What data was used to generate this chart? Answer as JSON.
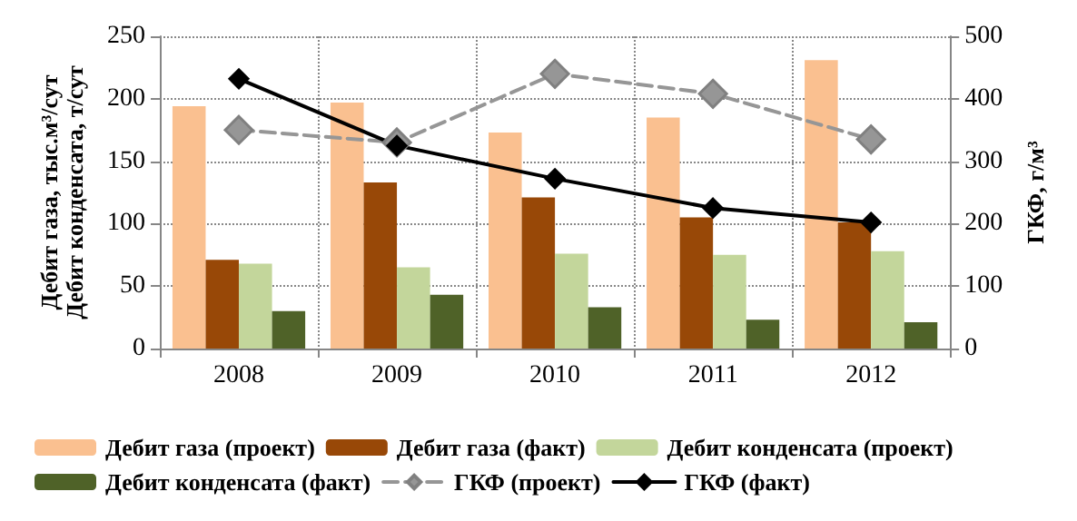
{
  "chart_data": {
    "type": "bar",
    "categories": [
      "2008",
      "2009",
      "2010",
      "2011",
      "2012"
    ],
    "ylabel": "Дебит газа, тыс.м³/сут\nДебит конденсата, т/сут",
    "y2label": "ГКФ, г/м³",
    "ylim": [
      0,
      250
    ],
    "yticks": [
      0,
      50,
      100,
      150,
      200,
      250
    ],
    "y2lim": [
      0,
      500
    ],
    "y2ticks": [
      0,
      100,
      200,
      300,
      400,
      500
    ],
    "grid": true,
    "legend": "bottom",
    "series": [
      {
        "name": "Дебит газа (проект)",
        "color": "#fac090",
        "values": [
          194,
          197,
          173,
          185,
          231
        ]
      },
      {
        "name": "Дебит газа (факт)",
        "color": "#984807",
        "values": [
          71,
          133,
          121,
          105,
          101
        ]
      },
      {
        "name": "Дебит конденсата (проект)",
        "color": "#c3d69b",
        "values": [
          68,
          65,
          76,
          75,
          78
        ]
      },
      {
        "name": "Дебит конденсата (факт)",
        "color": "#4f6228",
        "values": [
          30,
          43,
          33,
          23,
          21
        ]
      },
      {
        "name": "ГКФ (проект)",
        "type": "line",
        "axis": "y2",
        "color": "#969696",
        "marker": "diamond",
        "line_style": "dashed",
        "values": [
          350,
          330,
          440,
          408,
          335
        ]
      },
      {
        "name": "ГКФ (факт)",
        "type": "line",
        "axis": "y2",
        "color": "#000000",
        "marker": "diamond",
        "line_style": "solid",
        "values": [
          432,
          325,
          272,
          225,
          202
        ]
      }
    ]
  }
}
